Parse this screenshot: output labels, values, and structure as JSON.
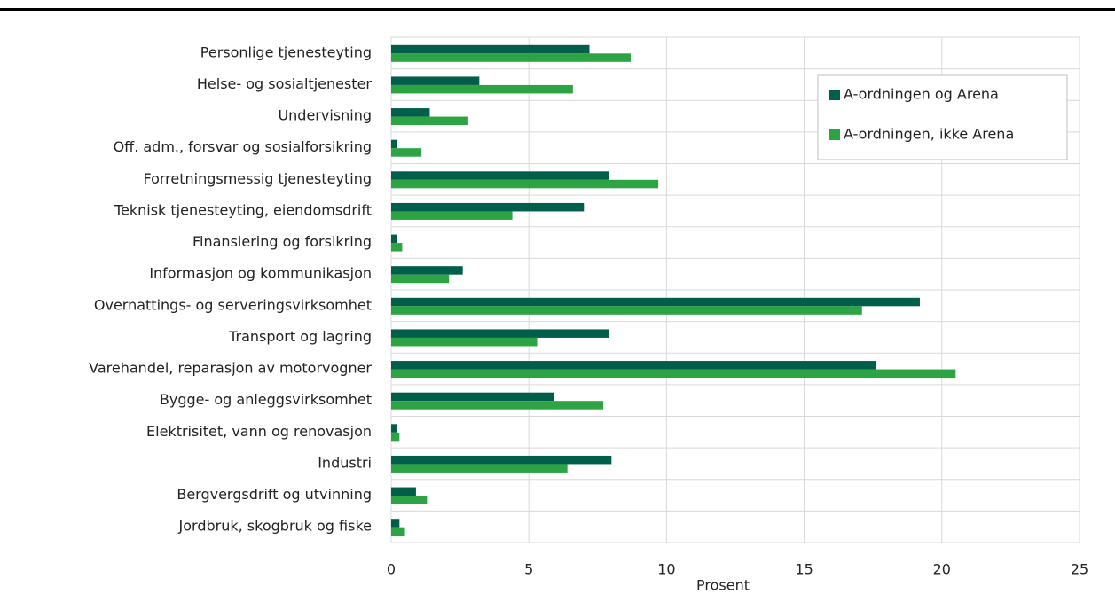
{
  "chart_data": {
    "type": "hbar",
    "xlabel": "Prosent",
    "categories": [
      "Personlige tjenesteyting",
      "Helse- og sosialtjenester",
      "Undervisning",
      "Off. adm., forsvar og sosialforsikring",
      "Forretningsmessig tjenesteyting",
      "Teknisk tjenesteyting, eiendomsdrift",
      "Finansiering og forsikring",
      "Informasjon og kommunikasjon",
      "Overnattings- og serveringsvirksomhet",
      "Transport og lagring",
      "Varehandel, reparasjon av motorvogner",
      "Bygge- og anleggsvirksomhet",
      "Elektrisitet, vann og renovasjon",
      "Industri",
      "Bergvergsdrift og utvinning",
      "Jordbruk, skogbruk og fiske"
    ],
    "series": [
      {
        "name": "A-ordningen og Arena",
        "color": "#005e4b",
        "values": [
          7.2,
          3.2,
          1.4,
          0.2,
          7.9,
          7.0,
          0.2,
          2.6,
          19.2,
          7.9,
          17.6,
          5.9,
          0.2,
          8.0,
          0.9,
          0.3
        ]
      },
      {
        "name": "A-ordningen, ikke Arena",
        "color": "#2ca444",
        "values": [
          8.7,
          6.6,
          2.8,
          1.1,
          9.7,
          4.4,
          0.4,
          2.1,
          17.1,
          5.3,
          20.5,
          7.7,
          0.3,
          6.4,
          1.3,
          0.5
        ]
      }
    ],
    "xlim": [
      0,
      25
    ],
    "xticks": [
      0,
      5,
      10,
      15,
      20,
      25
    ],
    "grid": true,
    "legend": "upper right"
  }
}
